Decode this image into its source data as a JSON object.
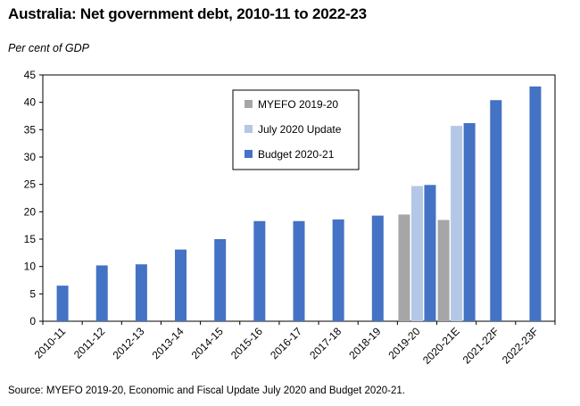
{
  "header": {
    "title": "Australia: Net government debt, 2010-11 to 2022-23",
    "subtitle": "Per cent of GDP"
  },
  "footer": {
    "source": "Source: MYEFO 2019-20,  Economic and Fiscal Update July 2020 and Budget 2020-21."
  },
  "chart_data": {
    "type": "bar",
    "title": "Australia: Net government debt, 2010-11 to 2022-23",
    "ylabel": "Per cent of GDP",
    "ylim": [
      0,
      45
    ],
    "yticks": [
      0,
      5,
      10,
      15,
      20,
      25,
      30,
      35,
      40,
      45
    ],
    "grid": false,
    "legend_position": "top-center",
    "categories": [
      "2010-11",
      "2011-12",
      "2012-13",
      "2013-14",
      "2014-15",
      "2015-16",
      "2016-17",
      "2017-18",
      "2018-19",
      "2019-20",
      "2020-21E",
      "2021-22F",
      "2022-23F"
    ],
    "series": [
      {
        "name": "MYEFO 2019-20",
        "color": "#a6a6a6",
        "values": [
          null,
          null,
          null,
          null,
          null,
          null,
          null,
          null,
          null,
          19.5,
          18.5,
          null,
          null
        ]
      },
      {
        "name": "July 2020 Update",
        "color": "#b4c7e7",
        "values": [
          null,
          null,
          null,
          null,
          null,
          null,
          null,
          null,
          null,
          24.7,
          35.7,
          null,
          null
        ]
      },
      {
        "name": "Budget 2020-21",
        "color": "#4472c4",
        "values": [
          6.5,
          10.2,
          10.4,
          13.1,
          15.0,
          18.3,
          18.3,
          18.6,
          19.3,
          24.9,
          36.2,
          40.4,
          42.9
        ]
      }
    ]
  }
}
